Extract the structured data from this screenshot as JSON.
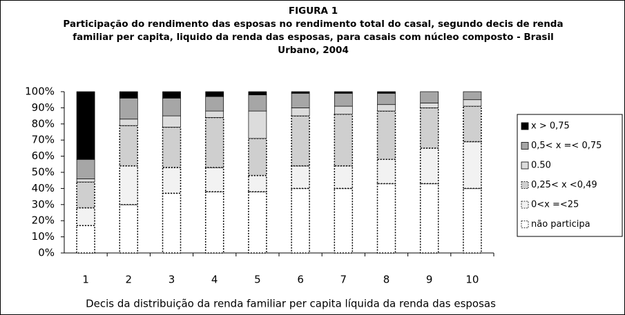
{
  "chart_data": {
    "type": "stacked_bar",
    "title": "FIGURA 1",
    "subtitle": "Participação do rendimento das esposas no rendimento total do casal, segundo decis de renda familiar per capita, liquido da renda das esposas, para casais com núcleo composto - Brasil Urbano, 2004",
    "x_label": "Decis da distribuição da  renda familiar per capita líquida da renda das esposas",
    "categories": [
      "1",
      "2",
      "3",
      "4",
      "5",
      "6",
      "7",
      "8",
      "9",
      "10"
    ],
    "series": [
      {
        "name": "não participa",
        "color": "#ffffff",
        "values": [
          17,
          30,
          37,
          38,
          38,
          40,
          40,
          43,
          43,
          40
        ]
      },
      {
        "name": "0<x =<25",
        "color": "#f2f2f2",
        "values": [
          11,
          24,
          16,
          15,
          10,
          14,
          14,
          15,
          22,
          29
        ]
      },
      {
        "name": "0,25< x <0,49",
        "color": "#cfcfcf",
        "values": [
          16,
          25,
          25,
          31,
          23,
          31,
          32,
          30,
          25,
          22
        ]
      },
      {
        "name": "0.50",
        "color": "#dcdcdc",
        "values": [
          2,
          4,
          7,
          4,
          17,
          5,
          5,
          4,
          3,
          4
        ]
      },
      {
        "name": "0,5< x =< 0,75",
        "color": "#a6a6a6",
        "values": [
          12,
          13,
          11,
          9,
          10,
          9,
          8,
          7,
          7,
          5
        ]
      },
      {
        "name": "x > 0,75",
        "color": "#000000",
        "values": [
          42,
          4,
          4,
          3,
          2,
          1,
          1,
          1,
          0,
          0
        ]
      }
    ],
    "ylim": [
      0,
      100
    ],
    "yticks": [
      {
        "value": 0,
        "label": "0%"
      },
      {
        "value": 10,
        "label": "10%"
      },
      {
        "value": 20,
        "label": "20%"
      },
      {
        "value": 30,
        "label": "30%"
      },
      {
        "value": 40,
        "label": "40%"
      },
      {
        "value": 50,
        "label": "50%"
      },
      {
        "value": 60,
        "label": "60%"
      },
      {
        "value": 70,
        "label": "70%"
      },
      {
        "value": 80,
        "label": "80%"
      },
      {
        "value": 90,
        "label": "90%"
      },
      {
        "value": 100,
        "label": "100%"
      }
    ],
    "legend": "right"
  }
}
